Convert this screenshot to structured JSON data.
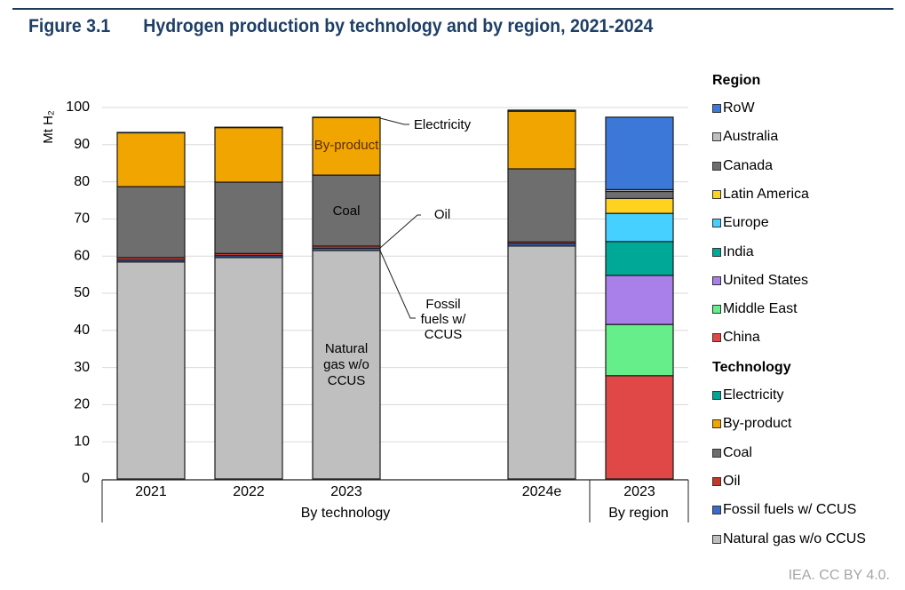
{
  "figure": {
    "number": "Figure 3.1",
    "title": "Hydrogen production by technology and by region, 2021-2024",
    "credit": "IEA. CC BY 4.0."
  },
  "chart_data": {
    "type": "bar",
    "stacked": true,
    "title": "Hydrogen production by technology and by region, 2021-2024",
    "ylabel": "Mt H₂",
    "ylim": [
      0,
      100
    ],
    "yticks": [
      0,
      10,
      20,
      30,
      40,
      50,
      60,
      70,
      80,
      90,
      100
    ],
    "grid": true,
    "legend_position": "right",
    "groups": [
      {
        "label": "By technology",
        "categories": [
          "2021",
          "2022",
          "2023",
          "2024e"
        ]
      },
      {
        "label": "By region",
        "categories": [
          "2023"
        ]
      }
    ],
    "technology": {
      "categories": [
        "2021",
        "2022",
        "2023",
        "2024e"
      ],
      "series": [
        {
          "name": "Natural gas w/o CCUS",
          "color": "#BFBFBF",
          "values": [
            58.4,
            59.6,
            61.5,
            62.7
          ]
        },
        {
          "name": "Fossil fuels w/ CCUS",
          "color": "#3A6BC9",
          "values": [
            0.5,
            0.5,
            0.6,
            0.6
          ]
        },
        {
          "name": "Oil",
          "color": "#C0392B",
          "values": [
            0.7,
            0.6,
            0.6,
            0.5
          ]
        },
        {
          "name": "Coal",
          "color": "#6E6E6E",
          "values": [
            19.1,
            19.2,
            19.1,
            19.7
          ]
        },
        {
          "name": "By-product",
          "color": "#F0A500",
          "values": [
            14.5,
            14.7,
            15.5,
            15.5
          ]
        },
        {
          "name": "Electricity",
          "color": "#00A693",
          "values": [
            0.1,
            0.1,
            0.1,
            0.3
          ]
        }
      ]
    },
    "region": {
      "categories": [
        "2023"
      ],
      "series": [
        {
          "name": "China",
          "color": "#E04848",
          "values": [
            27.8
          ]
        },
        {
          "name": "Middle East",
          "color": "#66EE8A",
          "values": [
            13.8
          ]
        },
        {
          "name": "United States",
          "color": "#A97FEA",
          "values": [
            13.2
          ]
        },
        {
          "name": "India",
          "color": "#00A897",
          "values": [
            9.1
          ]
        },
        {
          "name": "Europe",
          "color": "#45D0FF",
          "values": [
            7.6
          ]
        },
        {
          "name": "Latin America",
          "color": "#FFD21F",
          "values": [
            4.0
          ]
        },
        {
          "name": "Canada",
          "color": "#6E6E6E",
          "values": [
            1.9
          ]
        },
        {
          "name": "Australia",
          "color": "#BFBFBF",
          "values": [
            0.5
          ]
        },
        {
          "name": "RoW",
          "color": "#3C78D8",
          "values": [
            19.5
          ]
        }
      ]
    },
    "annotations": [
      {
        "text": "Electricity",
        "target": "2023 Electricity"
      },
      {
        "text": "By-product",
        "target": "2023 By-product"
      },
      {
        "text": "Coal",
        "target": "2023 Coal"
      },
      {
        "text": "Oil",
        "target": "2023 Oil"
      },
      {
        "text": "Fossil fuels w/ CCUS",
        "lines": [
          "Fossil",
          "fuels w/",
          "CCUS"
        ],
        "target": "2023 Fossil fuels w/ CCUS"
      },
      {
        "text": "Natural gas w/o CCUS",
        "lines": [
          "Natural",
          "gas w/o",
          "CCUS"
        ],
        "target": "2023 Natural gas w/o CCUS"
      }
    ]
  },
  "legend": {
    "region_heading": "Region",
    "region_items": [
      {
        "label": "RoW",
        "color": "#3C78D8"
      },
      {
        "label": "Australia",
        "color": "#BFBFBF"
      },
      {
        "label": "Canada",
        "color": "#6E6E6E"
      },
      {
        "label": "Latin America",
        "color": "#FFD21F"
      },
      {
        "label": "Europe",
        "color": "#45D0FF"
      },
      {
        "label": "India",
        "color": "#00A897"
      },
      {
        "label": "United States",
        "color": "#A97FEA"
      },
      {
        "label": "Middle East",
        "color": "#66EE8A"
      },
      {
        "label": "China",
        "color": "#E04848"
      }
    ],
    "technology_heading": "Technology",
    "technology_items": [
      {
        "label": "Electricity",
        "color": "#00A693"
      },
      {
        "label": "By-product",
        "color": "#F0A500"
      },
      {
        "label": "Coal",
        "color": "#6E6E6E"
      },
      {
        "label": "Oil",
        "color": "#C0392B"
      },
      {
        "label": "Fossil fuels w/ CCUS",
        "color": "#3A6BC9"
      },
      {
        "label": "Natural gas w/o CCUS",
        "color": "#BFBFBF"
      }
    ]
  }
}
